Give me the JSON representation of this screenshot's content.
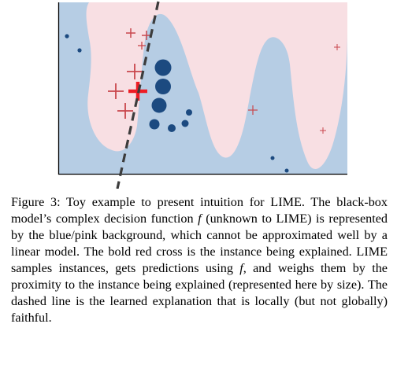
{
  "figure": {
    "colors": {
      "blue_region": "#b6cde4",
      "pink_region": "#f8dfe3",
      "blue_point": "#1c4a80",
      "red_cross": "#c9464c",
      "bold_cross": "#ee1c24",
      "dashed_line": "#3c3c3c",
      "axis": "#000000"
    }
  },
  "caption": {
    "label": "Figure 3:",
    "s1": "Toy example to present intuition for LIME. The black-box model’s complex decision function",
    "f1": "f",
    "s2": "(unknown to LIME) is represented by the blue/pink background, which cannot be approximated well by a linear model. The bold red cross is the instance being explained. LIME samples instances, gets predictions using",
    "f2": "f",
    "s3": ", and weighs them by the proximity to the instance being explained (represented here by size). The dashed line is the learned explanation that is locally (but not globally) faithful."
  }
}
